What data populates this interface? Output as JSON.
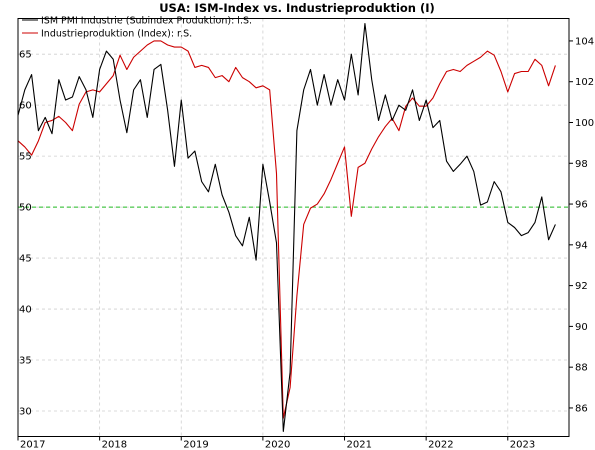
{
  "chart_data": {
    "type": "line",
    "title": "USA: ISM-Index vs. Industrieproduktion (I)",
    "legend_position": "top-left",
    "grid": true,
    "x_range": [
      2017.0,
      2023.75
    ],
    "x_ticks": [
      "2017",
      "2018",
      "2019",
      "2020",
      "2021",
      "2022",
      "2023"
    ],
    "y_left": {
      "range": [
        27.5,
        68.5
      ],
      "ticks": [
        30,
        35,
        40,
        45,
        50,
        55,
        60,
        65
      ]
    },
    "y_right": {
      "range": [
        84.6,
        105.1
      ],
      "ticks": [
        86,
        88,
        90,
        92,
        94,
        96,
        98,
        100,
        102,
        104
      ]
    },
    "reference_line": {
      "axis": "left",
      "value": 50,
      "color": "#22bb22"
    },
    "series": [
      {
        "name": "ISM PMI Industrie (Subindex Produktion): l.S.",
        "axis": "left",
        "color": "#000000",
        "start": "2017-01",
        "values": [
          59.0,
          61.5,
          63.0,
          57.5,
          58.8,
          57.2,
          62.5,
          60.5,
          60.8,
          62.8,
          61.5,
          58.8,
          63.5,
          65.3,
          64.5,
          60.5,
          57.3,
          61.5,
          62.5,
          58.8,
          63.5,
          64.0,
          59.5,
          54.0,
          60.5,
          54.8,
          55.5,
          52.5,
          51.5,
          54.2,
          51.2,
          49.5,
          47.2,
          46.2,
          49.0,
          44.8,
          54.2,
          50.5,
          46.5,
          28.0,
          33.8,
          57.5,
          61.5,
          63.5,
          60.0,
          63.0,
          60.0,
          62.5,
          60.5,
          65.0,
          61.0,
          68.0,
          62.5,
          58.5,
          61.0,
          58.5,
          60.0,
          59.5,
          61.5,
          58.5,
          60.5,
          57.8,
          58.5,
          54.5,
          53.5,
          54.2,
          55.0,
          53.5,
          50.2,
          50.5,
          52.5,
          51.5,
          48.5,
          48.0,
          47.2,
          47.5,
          48.5,
          51.0,
          46.8,
          48.3
        ]
      },
      {
        "name": "Industrieproduktion (Index): r.S.",
        "axis": "right",
        "color": "#cc0000",
        "start": "2017-01",
        "values": [
          99.1,
          98.8,
          98.4,
          99.1,
          100.0,
          100.1,
          100.3,
          100.0,
          99.6,
          100.9,
          101.5,
          101.6,
          101.5,
          101.9,
          102.3,
          103.3,
          102.6,
          103.2,
          103.5,
          103.8,
          104.0,
          104.0,
          103.8,
          103.7,
          103.7,
          103.5,
          102.7,
          102.8,
          102.7,
          102.2,
          102.3,
          102.0,
          102.7,
          102.2,
          102.0,
          101.7,
          101.8,
          101.6,
          97.5,
          85.5,
          87.0,
          91.5,
          95.0,
          95.8,
          96.0,
          96.5,
          97.2,
          98.0,
          98.8,
          95.4,
          97.8,
          98.0,
          98.7,
          99.3,
          99.8,
          100.2,
          99.6,
          100.8,
          101.2,
          100.8,
          100.8,
          101.2,
          101.9,
          102.5,
          102.6,
          102.5,
          102.8,
          103.0,
          103.2,
          103.5,
          103.3,
          102.5,
          101.5,
          102.4,
          102.5,
          102.5,
          103.1,
          102.8,
          101.8,
          102.8
        ]
      }
    ]
  }
}
